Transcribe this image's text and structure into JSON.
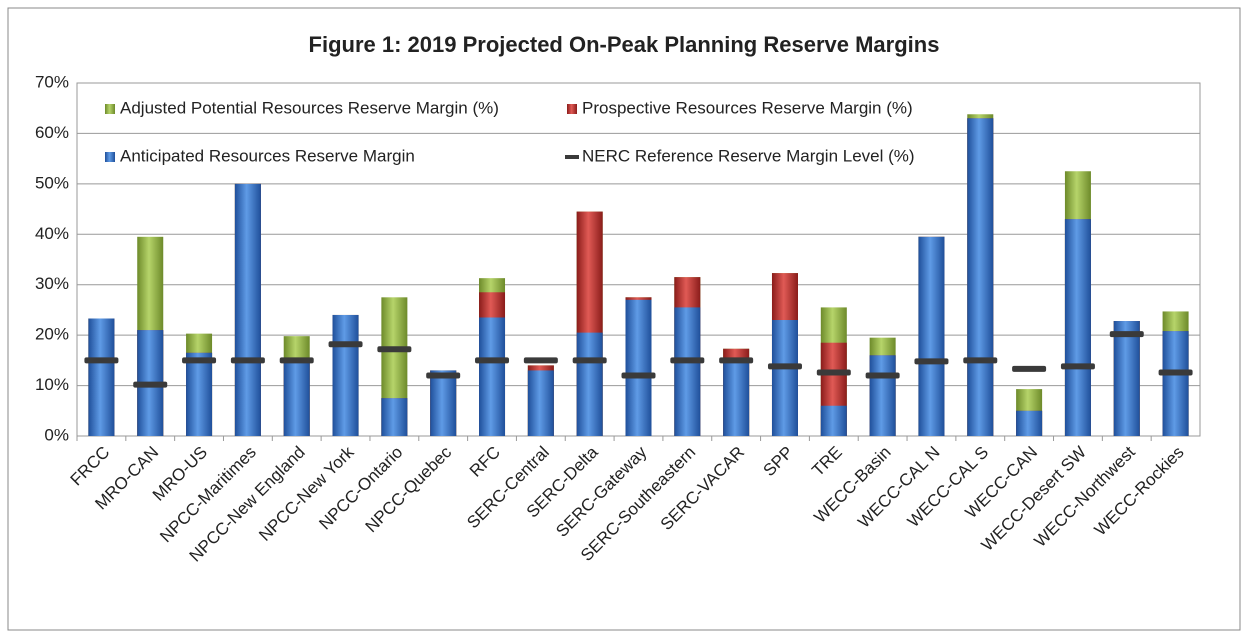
{
  "chart_data": {
    "type": "bar",
    "title": "Figure 1: 2019 Projected On-Peak Planning Reserve Margins",
    "categories": [
      "FRCC",
      "MRO-CAN",
      "MRO-US",
      "NPCC-Maritimes",
      "NPCC-New England",
      "NPCC-New York",
      "NPCC-Ontario",
      "NPCC-Quebec",
      "RFC",
      "SERC-Central",
      "SERC-Delta",
      "SERC-Gateway",
      "SERC-Southeastern",
      "SERC-VACAR",
      "SPP",
      "TRE",
      "WECC-Basin",
      "WECC-CAL N",
      "WECC-CAL S",
      "WECC-CAN",
      "WECC-Desert SW",
      "WECC-Northwest",
      "WECC-Rockies"
    ],
    "series": [
      {
        "name": "Adjusted Potential Resources Reserve Margin (%)",
        "color": "#8db23c",
        "type": "bar",
        "values": [
          23.3,
          39.5,
          20.3,
          50,
          19.8,
          24,
          27.5,
          13,
          31.3,
          14,
          44.5,
          27.5,
          31.5,
          17.3,
          32.3,
          25.5,
          19.5,
          39.5,
          63.8,
          9.3,
          52.5,
          22.8,
          24.7
        ]
      },
      {
        "name": "Prospective Resources Reserve Margin (%)",
        "color": "#c2312d",
        "type": "bar",
        "values": [
          23.3,
          21,
          16.5,
          50,
          14.5,
          24,
          7.5,
          13,
          28.5,
          14,
          44.5,
          27.5,
          31.5,
          17.3,
          32.3,
          18.5,
          16,
          39.5,
          63,
          5,
          43,
          22.8,
          20.8
        ]
      },
      {
        "name": "Anticipated Resources Reserve Margin",
        "color": "#2f6fc6",
        "type": "bar",
        "values": [
          23.3,
          21,
          16.5,
          50,
          14.5,
          24,
          7.5,
          13,
          23.5,
          13,
          20.5,
          27,
          25.5,
          15.5,
          23,
          6,
          16,
          39.5,
          63,
          5,
          43,
          22.8,
          20.8
        ]
      },
      {
        "name": "NERC Reference Reserve Margin Level (%)",
        "color": "#3a3a3a",
        "type": "marker",
        "values": [
          15,
          10.2,
          15,
          15,
          15,
          18.2,
          17.2,
          12,
          15,
          15,
          15,
          12,
          15,
          15,
          13.8,
          12.6,
          12,
          14.8,
          15,
          13.3,
          13.8,
          20.2,
          12.6
        ]
      }
    ],
    "ylim": [
      0,
      70
    ],
    "yticks": [
      {
        "value": 0,
        "label": "0%"
      },
      {
        "value": 10,
        "label": "10%"
      },
      {
        "value": 20,
        "label": "20%"
      },
      {
        "value": 30,
        "label": "30%"
      },
      {
        "value": 40,
        "label": "40%"
      },
      {
        "value": 50,
        "label": "50%"
      },
      {
        "value": 60,
        "label": "60%"
      },
      {
        "value": 70,
        "label": "70%"
      }
    ],
    "grid": true
  }
}
